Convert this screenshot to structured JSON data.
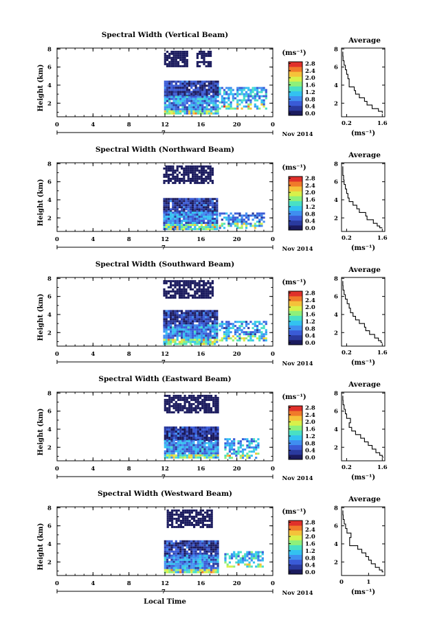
{
  "figure": {
    "xlabel": "Local Time",
    "date_label": "Nov 2014",
    "day_label": "7",
    "height_label": "Height (km)",
    "unit_label": "(ms⁻¹)",
    "avg_title": "Average"
  },
  "chart_data": [
    {
      "type": "heatmap",
      "title": "Spectral Width (Vertical Beam)",
      "xlabel": "Local Time",
      "ylabel": "Height (km)",
      "xticks": [
        "0",
        "4",
        "8",
        "12",
        "16",
        "20",
        "0"
      ],
      "yticks": [
        "2",
        "4",
        "6",
        "8"
      ],
      "xlim": [
        0,
        24
      ],
      "ylim": [
        0.5,
        8.1
      ],
      "colorbar": {
        "label": "(ms⁻¹)",
        "ticks": [
          "0.0",
          "0.4",
          "0.8",
          "1.2",
          "1.6",
          "2.0",
          "2.4",
          "2.8"
        ],
        "range": [
          0.0,
          2.8
        ]
      },
      "blocks": [
        {
          "t0": 11.9,
          "t1": 14.5,
          "h0": 6.1,
          "h1": 7.8,
          "level": 0.1
        },
        {
          "t0": 15.5,
          "t1": 17.2,
          "h0": 6.1,
          "h1": 7.8,
          "level": 0.1
        },
        {
          "t0": 11.9,
          "t1": 17.9,
          "h0": 2.8,
          "h1": 4.5,
          "level": 0.35
        },
        {
          "t0": 11.9,
          "t1": 17.9,
          "h0": 0.8,
          "h1": 2.8,
          "level": 0.9
        },
        {
          "t0": 18.0,
          "t1": 23.3,
          "h0": 1.5,
          "h1": 3.8,
          "level": 1.0
        }
      ],
      "average": {
        "title": "Average",
        "xlabel": "(ms⁻¹)",
        "xticks": [
          "0.2",
          "1.6"
        ],
        "yticks": [
          "2",
          "4",
          "6",
          "8"
        ],
        "xlim": [
          0.0,
          1.7
        ],
        "ylim": [
          0.5,
          8.1
        ],
        "height": [
          7.7,
          7.2,
          6.7,
          6.2,
          5.7,
          5.2,
          4.7,
          4.2,
          3.8,
          3.4,
          3.0,
          2.6,
          2.2,
          1.8,
          1.4,
          1.1,
          0.9
        ],
        "value": [
          0.05,
          0.06,
          0.1,
          0.15,
          0.2,
          0.25,
          0.3,
          0.3,
          0.5,
          0.55,
          0.7,
          0.9,
          1.0,
          1.2,
          1.45,
          1.6,
          1.6
        ]
      }
    },
    {
      "type": "heatmap",
      "title": "Spectral Width (Northward Beam)",
      "xlabel": "Local Time",
      "ylabel": "Height (km)",
      "xticks": [
        "0",
        "4",
        "8",
        "12",
        "16",
        "20",
        "0"
      ],
      "yticks": [
        "2",
        "4",
        "6",
        "8"
      ],
      "xlim": [
        0,
        24
      ],
      "ylim": [
        0.5,
        8.1
      ],
      "colorbar": {
        "label": "(ms⁻¹)",
        "ticks": [
          "0.0",
          "0.4",
          "0.8",
          "1.2",
          "1.6",
          "2.0",
          "2.4",
          "2.8"
        ],
        "range": [
          0.0,
          2.8
        ]
      },
      "blocks": [
        {
          "t0": 11.8,
          "t1": 17.2,
          "h0": 5.8,
          "h1": 7.8,
          "level": 0.1
        },
        {
          "t0": 11.8,
          "t1": 17.9,
          "h0": 2.7,
          "h1": 4.2,
          "level": 0.35
        },
        {
          "t0": 11.8,
          "t1": 17.9,
          "h0": 0.8,
          "h1": 2.7,
          "level": 0.8
        },
        {
          "t0": 18.0,
          "t1": 23.0,
          "h0": 1.0,
          "h1": 2.6,
          "level": 0.8
        }
      ],
      "average": {
        "title": "Average",
        "xlabel": "(ms⁻¹)",
        "xticks": [
          "0.2",
          "1.6"
        ],
        "yticks": [
          "2",
          "4",
          "6",
          "8"
        ],
        "xlim": [
          0.0,
          1.7
        ],
        "ylim": [
          0.5,
          8.1
        ],
        "height": [
          7.7,
          7.2,
          6.7,
          6.2,
          5.7,
          5.2,
          4.7,
          4.2,
          3.8,
          3.4,
          3.0,
          2.6,
          2.2,
          1.8,
          1.4,
          1.1,
          0.9
        ],
        "value": [
          0.05,
          0.05,
          0.08,
          0.1,
          0.15,
          0.2,
          0.25,
          0.3,
          0.45,
          0.6,
          0.7,
          0.95,
          1.0,
          1.25,
          1.4,
          1.5,
          1.6
        ]
      }
    },
    {
      "type": "heatmap",
      "title": "Spectral Width (Southward Beam)",
      "xlabel": "Local Time",
      "ylabel": "Height (km)",
      "xticks": [
        "0",
        "4",
        "8",
        "12",
        "16",
        "20",
        "0"
      ],
      "yticks": [
        "2",
        "4",
        "6",
        "8"
      ],
      "xlim": [
        0,
        24
      ],
      "ylim": [
        0.5,
        8.1
      ],
      "colorbar": {
        "label": "(ms⁻¹)",
        "ticks": [
          "0.0",
          "0.4",
          "0.8",
          "1.2",
          "1.6",
          "2.0",
          "2.4",
          "2.8"
        ],
        "range": [
          0.0,
          2.8
        ]
      },
      "blocks": [
        {
          "t0": 11.8,
          "t1": 17.2,
          "h0": 5.8,
          "h1": 7.8,
          "level": 0.1
        },
        {
          "t0": 11.8,
          "t1": 17.9,
          "h0": 2.9,
          "h1": 4.5,
          "level": 0.35
        },
        {
          "t0": 11.8,
          "t1": 17.9,
          "h0": 0.8,
          "h1": 2.9,
          "level": 0.9
        },
        {
          "t0": 18.0,
          "t1": 23.3,
          "h0": 1.2,
          "h1": 3.3,
          "level": 0.9
        }
      ],
      "average": {
        "title": "Average",
        "xlabel": "(ms⁻¹)",
        "xticks": [
          "0.2",
          "1.6"
        ],
        "yticks": [
          "2",
          "4",
          "6",
          "8"
        ],
        "xlim": [
          0.0,
          1.7
        ],
        "ylim": [
          0.5,
          8.1
        ],
        "height": [
          7.7,
          7.2,
          6.7,
          6.2,
          5.7,
          5.2,
          4.7,
          4.2,
          3.8,
          3.4,
          3.0,
          2.6,
          2.2,
          1.8,
          1.4,
          1.1,
          0.9
        ],
        "value": [
          0.05,
          0.06,
          0.1,
          0.15,
          0.22,
          0.3,
          0.35,
          0.45,
          0.55,
          0.7,
          0.9,
          0.95,
          1.1,
          1.3,
          1.45,
          1.55,
          1.6
        ]
      }
    },
    {
      "type": "heatmap",
      "title": "Spectral Width (Eastward Beam)",
      "xlabel": "Local Time",
      "ylabel": "Height (km)",
      "xticks": [
        "0",
        "4",
        "8",
        "12",
        "16",
        "20",
        "0"
      ],
      "yticks": [
        "2",
        "4",
        "6",
        "8"
      ],
      "xlim": [
        0,
        24
      ],
      "ylim": [
        0.5,
        8.1
      ],
      "colorbar": {
        "label": "(ms⁻¹)",
        "ticks": [
          "0.0",
          "0.4",
          "0.8",
          "1.2",
          "1.6",
          "2.0",
          "2.4",
          "2.8"
        ],
        "range": [
          0.0,
          2.8
        ]
      },
      "blocks": [
        {
          "t0": 11.9,
          "t1": 17.9,
          "h0": 5.8,
          "h1": 7.8,
          "level": 0.1
        },
        {
          "t0": 11.9,
          "t1": 17.9,
          "h0": 2.8,
          "h1": 4.3,
          "level": 0.35
        },
        {
          "t0": 11.9,
          "t1": 17.9,
          "h0": 0.8,
          "h1": 2.8,
          "level": 0.85
        },
        {
          "t0": 18.6,
          "t1": 22.5,
          "h0": 0.9,
          "h1": 3.0,
          "level": 1.0
        }
      ],
      "average": {
        "title": "Average",
        "xlabel": "(ms⁻¹)",
        "xticks": [
          "0.2",
          "1.6"
        ],
        "yticks": [
          "2",
          "4",
          "6",
          "8"
        ],
        "xlim": [
          0.0,
          1.7
        ],
        "ylim": [
          0.5,
          8.1
        ],
        "height": [
          7.7,
          7.2,
          6.7,
          6.2,
          5.7,
          5.2,
          4.7,
          4.2,
          3.8,
          3.4,
          3.0,
          2.6,
          2.2,
          1.8,
          1.4,
          1.1,
          0.9
        ],
        "value": [
          0.05,
          0.06,
          0.1,
          0.15,
          0.2,
          0.35,
          0.3,
          0.4,
          0.55,
          0.75,
          0.9,
          1.05,
          1.2,
          1.35,
          1.5,
          1.6,
          1.65
        ]
      }
    },
    {
      "type": "heatmap",
      "title": "Spectral Width (Westward Beam)",
      "xlabel": "Local Time",
      "ylabel": "Height (km)",
      "xticks": [
        "0",
        "4",
        "8",
        "12",
        "16",
        "20",
        "0"
      ],
      "yticks": [
        "2",
        "4",
        "6",
        "8"
      ],
      "xlim": [
        0,
        24
      ],
      "ylim": [
        0.5,
        8.1
      ],
      "colorbar": {
        "label": "(ms⁻¹)",
        "ticks": [
          "0.0",
          "0.4",
          "0.8",
          "1.2",
          "1.6",
          "2.0",
          "2.4",
          "2.8"
        ],
        "range": [
          0.0,
          2.8
        ]
      },
      "blocks": [
        {
          "t0": 12.2,
          "t1": 17.2,
          "h0": 5.8,
          "h1": 7.8,
          "level": 0.1
        },
        {
          "t0": 11.9,
          "t1": 17.9,
          "h0": 2.8,
          "h1": 4.4,
          "level": 0.35
        },
        {
          "t0": 11.9,
          "t1": 17.9,
          "h0": 0.8,
          "h1": 2.8,
          "level": 0.85
        },
        {
          "t0": 18.6,
          "t1": 23.0,
          "h0": 1.4,
          "h1": 3.2,
          "level": 1.1
        }
      ],
      "average": {
        "title": "Average",
        "xlabel": "(ms⁻¹)",
        "xticks": [
          "0",
          "1"
        ],
        "yticks": [
          "2",
          "4",
          "6",
          "8"
        ],
        "xlim": [
          0.0,
          1.6
        ],
        "ylim": [
          0.5,
          8.1
        ],
        "height": [
          7.7,
          7.2,
          6.7,
          6.2,
          5.7,
          5.2,
          4.7,
          4.2,
          3.8,
          3.4,
          3.0,
          2.6,
          2.2,
          1.8,
          1.4,
          1.1,
          0.9
        ],
        "value": [
          0.05,
          0.06,
          0.1,
          0.15,
          0.2,
          0.35,
          0.3,
          0.3,
          0.6,
          0.75,
          0.9,
          1.0,
          1.1,
          1.25,
          1.4,
          1.5,
          1.55
        ]
      }
    }
  ],
  "colormap": [
    "#1b1b5e",
    "#2a3a9e",
    "#3a5bd6",
    "#3f8ef0",
    "#33c2f0",
    "#49e0c4",
    "#8ef07a",
    "#d8f04a",
    "#f5c23a",
    "#f07a2a",
    "#e0302a"
  ]
}
